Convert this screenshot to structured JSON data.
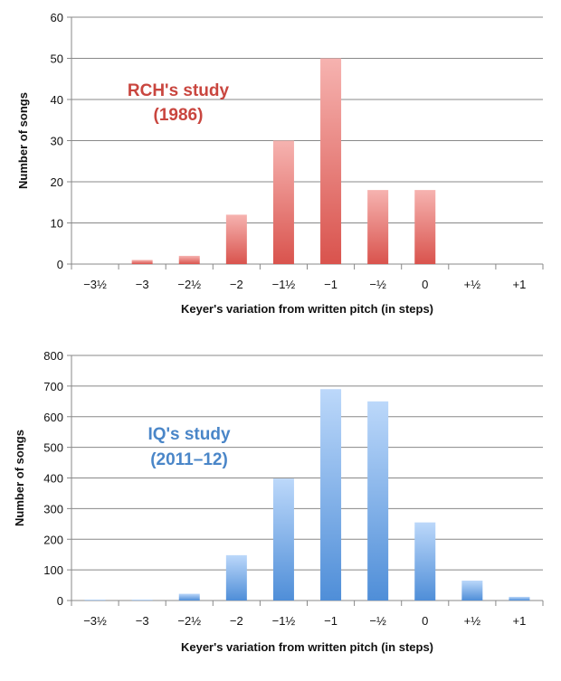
{
  "chart_data": [
    {
      "type": "bar",
      "title": "",
      "annotation_lines": [
        "RCH's study",
        "(1986)"
      ],
      "xlabel": "Keyer's variation from written pitch (in steps)",
      "ylabel": "Number of songs",
      "categories": [
        "−3½",
        "−3",
        "−2½",
        "−2",
        "−1½",
        "−1",
        "−½",
        "0",
        "+½",
        "+1"
      ],
      "values": [
        0,
        1,
        2,
        12,
        30,
        50,
        18,
        18,
        0,
        0
      ],
      "ylim": [
        0,
        60
      ],
      "yticks": [
        0,
        10,
        20,
        30,
        40,
        50,
        60
      ],
      "grid": true,
      "legend": "none",
      "colors": {
        "bar_top": "#f6b3b0",
        "bar_bottom": "#d9534d",
        "annotation": "#c9463f"
      }
    },
    {
      "type": "bar",
      "title": "",
      "annotation_lines": [
        "IQ's study",
        "(2011–12)"
      ],
      "xlabel": "Keyer's variation from written pitch (in steps)",
      "ylabel": "Number of songs",
      "categories": [
        "−3½",
        "−3",
        "−2½",
        "−2",
        "−1½",
        "−1",
        "−½",
        "0",
        "+½",
        "+1"
      ],
      "values": [
        2,
        2,
        22,
        148,
        398,
        690,
        650,
        255,
        65,
        12
      ],
      "ylim": [
        0,
        800
      ],
      "yticks": [
        0,
        100,
        200,
        300,
        400,
        500,
        600,
        700,
        800
      ],
      "grid": true,
      "legend": "none",
      "colors": {
        "bar_top": "#bcd8fa",
        "bar_bottom": "#4f8ed8",
        "annotation": "#4a86c8"
      }
    }
  ]
}
